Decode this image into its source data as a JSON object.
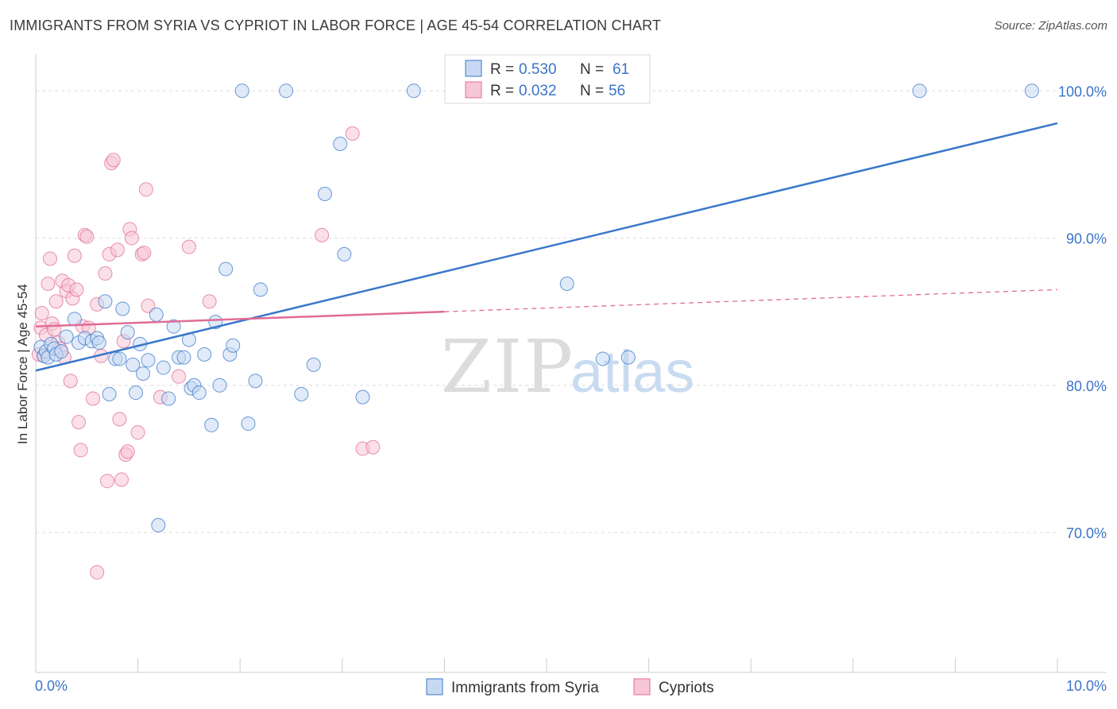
{
  "title": "IMMIGRANTS FROM SYRIA VS CYPRIOT IN LABOR FORCE | AGE 45-54 CORRELATION CHART",
  "source": "Source: ZipAtlas.com",
  "watermark": {
    "zip": "ZIP",
    "atlas": "atlas"
  },
  "colors": {
    "blue": "#3a78c9",
    "blue_fill": "#c7d9f2",
    "pink": "#e06c96",
    "pink_fill": "#f7c6d6",
    "axis_label": "#3a74c8",
    "grid": "#dddddd"
  },
  "chart_data": {
    "type": "scatter",
    "xlabel": "",
    "ylabel": "In Labor Force | Age 45-54",
    "xlim": [
      0,
      10
    ],
    "ylim": [
      60.5,
      102.5
    ],
    "x_tick_labels": [
      {
        "value": 0,
        "label": "0.0%"
      },
      {
        "value": 10,
        "label": "10.0%"
      }
    ],
    "y_tick_labels": [
      {
        "value": 70,
        "label": "70.0%"
      },
      {
        "value": 80,
        "label": "80.0%"
      },
      {
        "value": 90,
        "label": "90.0%"
      },
      {
        "value": 100,
        "label": "100.0%"
      }
    ],
    "grid": true,
    "legend_position": "top-center",
    "stats": [
      {
        "r_label": "R = ",
        "r_value": "0.530",
        "n_label": "N = ",
        "n_value": "61"
      },
      {
        "r_label": "R = ",
        "r_value": "0.032",
        "n_label": "N = ",
        "n_value": "56"
      }
    ],
    "series": [
      {
        "name": "Immigrants from Syria",
        "color": "#3a78c9",
        "trend": {
          "x": [
            0.0,
            10.0
          ],
          "y": [
            81.0,
            97.8
          ]
        },
        "points": [
          [
            0.05,
            82.6
          ],
          [
            0.08,
            82.0
          ],
          [
            0.1,
            82.3
          ],
          [
            0.12,
            81.9
          ],
          [
            0.15,
            82.8
          ],
          [
            0.18,
            82.5
          ],
          [
            0.2,
            82.1
          ],
          [
            0.25,
            82.3
          ],
          [
            0.3,
            83.3
          ],
          [
            0.38,
            84.5
          ],
          [
            0.42,
            82.9
          ],
          [
            0.48,
            83.2
          ],
          [
            0.55,
            83.0
          ],
          [
            0.6,
            83.2
          ],
          [
            0.62,
            82.9
          ],
          [
            0.68,
            85.7
          ],
          [
            0.72,
            79.4
          ],
          [
            0.78,
            81.8
          ],
          [
            0.82,
            81.8
          ],
          [
            0.85,
            85.2
          ],
          [
            0.9,
            83.6
          ],
          [
            0.95,
            81.4
          ],
          [
            0.98,
            79.5
          ],
          [
            1.02,
            82.8
          ],
          [
            1.05,
            80.8
          ],
          [
            1.1,
            81.7
          ],
          [
            1.18,
            84.8
          ],
          [
            1.25,
            81.2
          ],
          [
            1.3,
            79.1
          ],
          [
            1.35,
            84.0
          ],
          [
            1.4,
            81.9
          ],
          [
            1.45,
            81.9
          ],
          [
            1.5,
            83.1
          ],
          [
            1.52,
            79.8
          ],
          [
            1.55,
            80.0
          ],
          [
            1.6,
            79.5
          ],
          [
            1.65,
            82.1
          ],
          [
            1.72,
            77.3
          ],
          [
            1.76,
            84.3
          ],
          [
            1.8,
            80.0
          ],
          [
            1.86,
            87.9
          ],
          [
            1.9,
            82.1
          ],
          [
            1.93,
            82.7
          ],
          [
            2.02,
            100.0
          ],
          [
            2.08,
            77.4
          ],
          [
            2.15,
            80.3
          ],
          [
            2.2,
            86.5
          ],
          [
            2.45,
            100.0
          ],
          [
            2.6,
            79.4
          ],
          [
            2.72,
            81.4
          ],
          [
            2.83,
            93.0
          ],
          [
            2.98,
            96.4
          ],
          [
            3.02,
            88.9
          ],
          [
            3.2,
            79.2
          ],
          [
            3.7,
            100.0
          ],
          [
            5.2,
            86.9
          ],
          [
            5.55,
            81.8
          ],
          [
            5.8,
            81.9
          ],
          [
            8.65,
            100.0
          ],
          [
            9.75,
            100.0
          ],
          [
            1.2,
            70.5
          ]
        ]
      },
      {
        "name": "Cypriots",
        "color": "#e06c96",
        "trend": {
          "x": [
            0.0,
            4.0
          ],
          "y": [
            84.0,
            85.0
          ]
        },
        "trend_dashed": {
          "x": [
            4.0,
            10.0
          ],
          "y": [
            85.0,
            86.5
          ]
        },
        "points": [
          [
            0.03,
            82.1
          ],
          [
            0.05,
            83.9
          ],
          [
            0.06,
            84.9
          ],
          [
            0.08,
            82.0
          ],
          [
            0.1,
            83.4
          ],
          [
            0.12,
            86.9
          ],
          [
            0.14,
            88.6
          ],
          [
            0.16,
            84.2
          ],
          [
            0.18,
            83.8
          ],
          [
            0.2,
            85.7
          ],
          [
            0.22,
            82.9
          ],
          [
            0.24,
            82.5
          ],
          [
            0.26,
            87.1
          ],
          [
            0.28,
            81.9
          ],
          [
            0.3,
            86.4
          ],
          [
            0.32,
            86.8
          ],
          [
            0.34,
            80.3
          ],
          [
            0.36,
            85.9
          ],
          [
            0.38,
            88.8
          ],
          [
            0.4,
            86.5
          ],
          [
            0.42,
            77.5
          ],
          [
            0.44,
            75.6
          ],
          [
            0.46,
            84.0
          ],
          [
            0.48,
            90.2
          ],
          [
            0.5,
            90.1
          ],
          [
            0.52,
            83.9
          ],
          [
            0.56,
            79.1
          ],
          [
            0.6,
            85.5
          ],
          [
            0.64,
            82.0
          ],
          [
            0.68,
            87.6
          ],
          [
            0.7,
            73.5
          ],
          [
            0.72,
            88.9
          ],
          [
            0.74,
            95.1
          ],
          [
            0.76,
            95.3
          ],
          [
            0.8,
            89.2
          ],
          [
            0.82,
            77.7
          ],
          [
            0.84,
            73.6
          ],
          [
            0.86,
            83.0
          ],
          [
            0.88,
            75.3
          ],
          [
            0.9,
            75.5
          ],
          [
            0.92,
            90.6
          ],
          [
            0.94,
            90.0
          ],
          [
            1.0,
            76.8
          ],
          [
            1.04,
            88.9
          ],
          [
            1.06,
            89.0
          ],
          [
            1.08,
            93.3
          ],
          [
            1.1,
            85.4
          ],
          [
            1.22,
            79.2
          ],
          [
            1.4,
            80.6
          ],
          [
            1.5,
            89.4
          ],
          [
            1.7,
            85.7
          ],
          [
            2.8,
            90.2
          ],
          [
            3.1,
            97.1
          ],
          [
            3.2,
            75.7
          ],
          [
            3.3,
            75.8
          ],
          [
            0.6,
            67.3
          ]
        ]
      }
    ]
  }
}
